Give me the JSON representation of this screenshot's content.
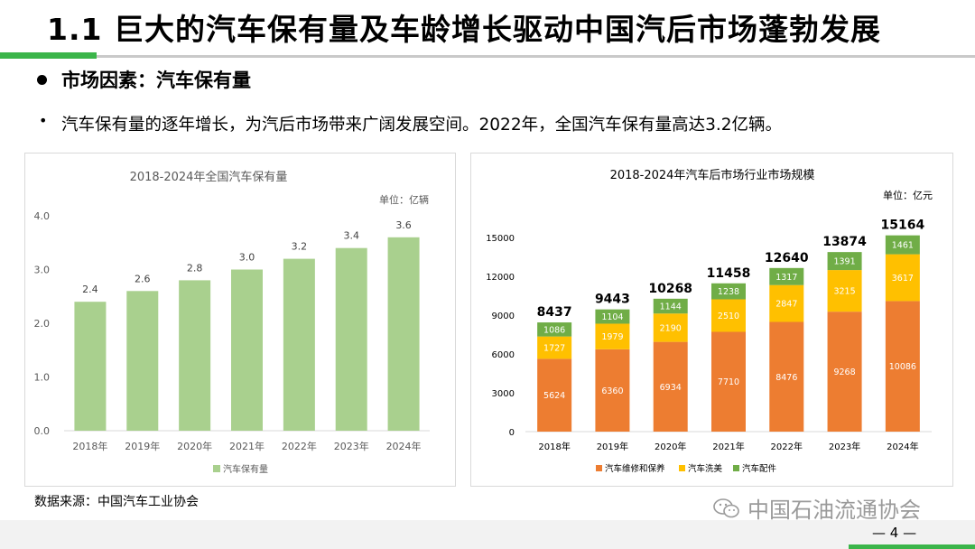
{
  "header": {
    "title": "1.1 巨大的汽车保有量及车龄增长驱动中国汽后市场蓬勃发展"
  },
  "section": {
    "heading": "市场因素：汽车保有量",
    "bullet": "汽车保有量的逐年增长，为汽后市场带来广阔发展空间。2022年，全国汽车保有量高达3.2亿辆。"
  },
  "footer": {
    "source": "数据来源：中国汽车工业协会",
    "watermark": "中国石油流通协会",
    "page": "— 4 —"
  },
  "colors": {
    "green_accent": "#3bb54a",
    "bar_green": "#a9d08e",
    "orange": "#ed7d31",
    "yellow": "#ffc000",
    "dark_green": "#70ad47"
  },
  "chart_data": [
    {
      "type": "bar",
      "title": "2018-2024年全国汽车保有量",
      "unit_label": "单位：亿辆",
      "categories": [
        "2018年",
        "2019年",
        "2020年",
        "2021年",
        "2022年",
        "2023年",
        "2024年"
      ],
      "series": [
        {
          "name": "汽车保有量",
          "values": [
            2.4,
            2.6,
            2.8,
            3.0,
            3.2,
            3.4,
            3.6
          ]
        }
      ],
      "value_labels": [
        "2.4",
        "2.6",
        "2.8",
        "3.0",
        "3.2",
        "3.4",
        "3.6"
      ],
      "ylim": [
        0,
        4
      ],
      "y_ticks": [
        "0.0",
        "1.0",
        "2.0",
        "3.0",
        "4.0"
      ],
      "legend": "bottom",
      "grid": false
    },
    {
      "type": "bar",
      "stacked": true,
      "title": "2018-2024年汽车后市场行业市场规模",
      "unit_label": "单位：亿元",
      "categories": [
        "2018年",
        "2019年",
        "2020年",
        "2021年",
        "2022年",
        "2023年",
        "2024年"
      ],
      "series": [
        {
          "name": "汽车维修和保养",
          "values": [
            5624,
            6360,
            6934,
            7710,
            8476,
            9268,
            10086
          ]
        },
        {
          "name": "汽车洗美",
          "values": [
            1727,
            1979,
            2190,
            2510,
            2847,
            3215,
            3617
          ]
        },
        {
          "name": "汽车配件",
          "values": [
            1086,
            1104,
            1144,
            1238,
            1317,
            1391,
            1461
          ]
        }
      ],
      "totals": [
        8437,
        9443,
        10268,
        11458,
        12640,
        13874,
        15164
      ],
      "ylim": [
        0,
        15000
      ],
      "y_ticks": [
        "0",
        "3000",
        "6000",
        "9000",
        "12000",
        "15000"
      ],
      "legend": "bottom",
      "grid": false
    }
  ]
}
